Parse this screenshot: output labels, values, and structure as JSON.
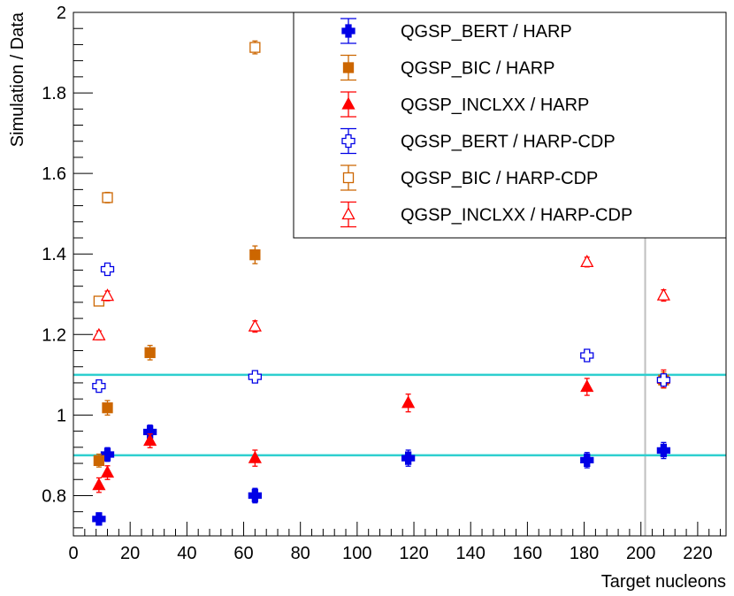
{
  "chart_data": {
    "type": "scatter",
    "xlabel": "Target nucleons",
    "ylabel": "Simulation / Data",
    "xlim": [
      0,
      230
    ],
    "ylim": [
      0.7,
      2.0
    ],
    "x_ticks": [
      "0",
      "20",
      "40",
      "60",
      "80",
      "100",
      "120",
      "140",
      "160",
      "180",
      "200",
      "220"
    ],
    "y_ticks": [
      "0.8",
      "1",
      "1.2",
      "1.4",
      "1.6",
      "1.8",
      "2"
    ],
    "reference_lines": [
      0.9,
      1.1
    ],
    "reference_line_color": "#2ecfcf",
    "vertical_marker_x": 201.5,
    "vertical_marker_color": "#c0c0c0",
    "legend_position": "top-right",
    "series": [
      {
        "name": "QGSP_BERT / HARP",
        "color": "#0000e6",
        "marker": "cross",
        "filled": true,
        "points": [
          {
            "x": 9,
            "y": 0.742,
            "err": 0.015
          },
          {
            "x": 12,
            "y": 0.902,
            "err": 0.017
          },
          {
            "x": 27,
            "y": 0.958,
            "err": 0.017
          },
          {
            "x": 64,
            "y": 0.8,
            "err": 0.018
          },
          {
            "x": 118,
            "y": 0.893,
            "err": 0.02
          },
          {
            "x": 181,
            "y": 0.888,
            "err": 0.019
          },
          {
            "x": 208,
            "y": 0.912,
            "err": 0.02
          }
        ]
      },
      {
        "name": "QGSP_BIC / HARP",
        "color": "#cc6600",
        "marker": "square",
        "filled": true,
        "points": [
          {
            "x": 9,
            "y": 0.887,
            "err": 0.016
          },
          {
            "x": 12,
            "y": 1.018,
            "err": 0.018
          },
          {
            "x": 27,
            "y": 1.155,
            "err": 0.018
          },
          {
            "x": 64,
            "y": 1.398,
            "err": 0.022
          },
          {
            "x": 208,
            "y": 1.087,
            "err": 0.02
          }
        ]
      },
      {
        "name": "QGSP_INCLXX / HARP",
        "color": "#ff0000",
        "marker": "triangle",
        "filled": true,
        "points": [
          {
            "x": 9,
            "y": 0.826,
            "err": 0.018
          },
          {
            "x": 12,
            "y": 0.857,
            "err": 0.017
          },
          {
            "x": 27,
            "y": 0.936,
            "err": 0.017
          },
          {
            "x": 64,
            "y": 0.893,
            "err": 0.02
          },
          {
            "x": 118,
            "y": 1.03,
            "err": 0.022
          },
          {
            "x": 181,
            "y": 1.07,
            "err": 0.021
          },
          {
            "x": 208,
            "y": 1.09,
            "err": 0.022
          }
        ]
      },
      {
        "name": "QGSP_BERT / HARP-CDP",
        "color": "#0000e6",
        "marker": "cross",
        "filled": false,
        "points": [
          {
            "x": 9,
            "y": 1.072,
            "err": 0.01
          },
          {
            "x": 12,
            "y": 1.362,
            "err": 0.012
          },
          {
            "x": 64,
            "y": 1.095,
            "err": 0.012
          },
          {
            "x": 181,
            "y": 1.148,
            "err": 0.011
          },
          {
            "x": 208,
            "y": 1.087,
            "err": 0.013
          }
        ]
      },
      {
        "name": "QGSP_BIC / HARP-CDP",
        "color": "#cc6600",
        "marker": "square",
        "filled": false,
        "points": [
          {
            "x": 9,
            "y": 1.283,
            "err": 0.011
          },
          {
            "x": 12,
            "y": 1.54,
            "err": 0.013
          },
          {
            "x": 64,
            "y": 1.913,
            "err": 0.016
          }
        ]
      },
      {
        "name": "QGSP_INCLXX / HARP-CDP",
        "color": "#ff0000",
        "marker": "triangle",
        "filled": false,
        "points": [
          {
            "x": 9,
            "y": 1.198,
            "err": 0.011
          },
          {
            "x": 12,
            "y": 1.296,
            "err": 0.012
          },
          {
            "x": 64,
            "y": 1.22,
            "err": 0.014
          },
          {
            "x": 181,
            "y": 1.38,
            "err": 0.012
          },
          {
            "x": 208,
            "y": 1.297,
            "err": 0.014
          }
        ]
      }
    ]
  }
}
